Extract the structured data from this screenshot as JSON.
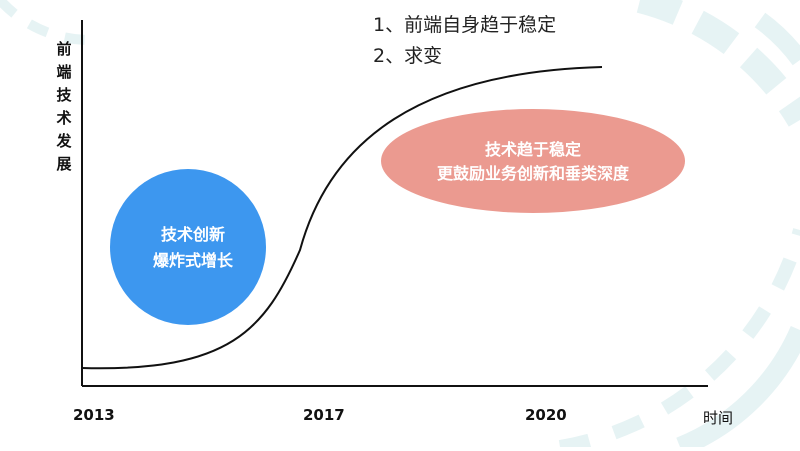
{
  "y_axis_label": "前端技术发展",
  "x_axis_label": "时间",
  "x_ticks": [
    "2013",
    "2017",
    "2020"
  ],
  "notes": [
    "1、前端自身趋于稳定",
    "2、求变"
  ],
  "bubbles": {
    "innovation": {
      "lines": [
        "技术创新",
        "爆炸式增长"
      ],
      "color": "#3d97ef"
    },
    "stable": {
      "lines": [
        "技术趋于稳定",
        "更鼓励业务创新和垂类深度"
      ],
      "color": "#eb9a90"
    }
  },
  "colors": {
    "axis": "#111111",
    "curve": "#111111",
    "decor": "#e6f3f4"
  }
}
